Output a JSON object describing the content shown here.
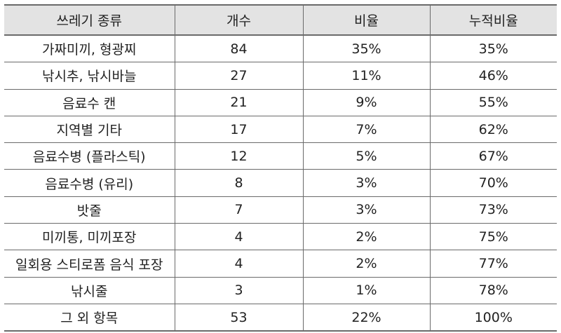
{
  "table": {
    "headers": [
      "쓰레기 종류",
      "개수",
      "비율",
      "누적비율"
    ],
    "rows": [
      [
        "가짜미끼, 형광찌",
        "84",
        "35%",
        "35%"
      ],
      [
        "낚시추, 낚시바늘",
        "27",
        "11%",
        "46%"
      ],
      [
        "음료수 캔",
        "21",
        "9%",
        "55%"
      ],
      [
        "지역별 기타",
        "17",
        "7%",
        "62%"
      ],
      [
        "음료수병 (플라스틱)",
        "12",
        "5%",
        "67%"
      ],
      [
        "음료수병 (유리)",
        "8",
        "3%",
        "70%"
      ],
      [
        "밧줄",
        "7",
        "3%",
        "73%"
      ],
      [
        "미끼통, 미끼포장",
        "4",
        "2%",
        "75%"
      ],
      [
        "일회용 스티로폼 음식 포장",
        "4",
        "2%",
        "77%"
      ],
      [
        "낚시줄",
        "3",
        "1%",
        "78%"
      ],
      [
        "그 외 항목",
        "53",
        "22%",
        "100%"
      ]
    ]
  },
  "colors": {
    "header_bg": "#e3e3e3",
    "border": "#6a6a6a",
    "text": "#222222"
  }
}
